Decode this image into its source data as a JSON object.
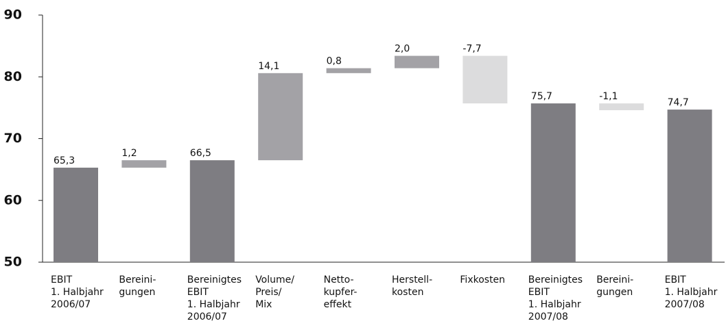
{
  "chart_data": {
    "type": "waterfall",
    "categories": [
      [
        "EBIT",
        "1. Halbjahr",
        "2006/07"
      ],
      [
        "Bereini-",
        "gungen"
      ],
      [
        "Bereinigtes",
        "EBIT",
        "1. Halbjahr",
        "2006/07"
      ],
      [
        "Volume/",
        "Preis/",
        "Mix"
      ],
      [
        "Netto-",
        "kupfer-",
        "effekt"
      ],
      [
        "Herstell-",
        "kosten"
      ],
      [
        "Fixkosten"
      ],
      [
        "Bereinigtes",
        "EBIT",
        "1. Halbjahr",
        "2007/08"
      ],
      [
        "Bereini-",
        "gungen"
      ],
      [
        "EBIT",
        "1. Halbjahr",
        "2007/08"
      ]
    ],
    "values": [
      65.3,
      1.2,
      66.5,
      14.1,
      0.8,
      2.0,
      -7.7,
      75.7,
      -1.1,
      74.7
    ],
    "value_labels": [
      "65,3",
      "1,2",
      "66,5",
      "14,1",
      "0,8",
      "2,0",
      "-7,7",
      "75,7",
      "-1,1",
      "74,7"
    ],
    "kinds": [
      "total",
      "delta",
      "total",
      "delta",
      "delta",
      "delta",
      "delta",
      "total",
      "delta",
      "total"
    ],
    "colors": {
      "total": "#7e7d82",
      "increase": "#a3a2a6",
      "decrease": "#dcdcdd"
    },
    "ylim": [
      50,
      90
    ],
    "yticks": [
      50,
      60,
      70,
      80,
      90
    ]
  }
}
